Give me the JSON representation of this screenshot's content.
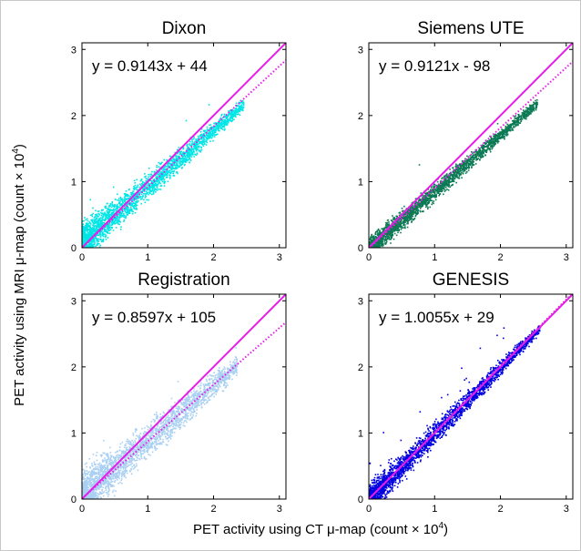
{
  "figure": {
    "ylabel": "PET activity using MRI μ-map (count × 10",
    "ylabel_sup": "4",
    "ylabel_end": ")",
    "xlabel": "PET activity using CT μ-map (count × 10",
    "xlabel_sup": "4",
    "xlabel_end": ")"
  },
  "colors": {
    "identity_line": "#e81ce8",
    "fit_line": "#e81ce8",
    "axis": "#000000"
  },
  "chart_data": [
    {
      "type": "scatter",
      "title": "Dixon",
      "equation": "y = 0.9143x + 44",
      "xlim": [
        0,
        3.1
      ],
      "ylim": [
        0,
        3.1
      ],
      "xticks": [
        "0",
        "1",
        "2",
        "3"
      ],
      "yticks": [
        "0",
        "1",
        "2",
        "3"
      ],
      "point_color": "#00e5e5",
      "fit": {
        "slope": 0.9143,
        "intercept": 0.0044
      },
      "cloud": {
        "x_min": 0.0,
        "x_max": 2.45,
        "y_ratio": 0.89,
        "offset": 0.09,
        "spread_lo": 0.22,
        "spread_hi": 0.07,
        "outliers": 0.1
      }
    },
    {
      "type": "scatter",
      "title": "Siemens UTE",
      "equation": "y = 0.9121x - 98",
      "xlim": [
        0,
        3.1
      ],
      "ylim": [
        0,
        3.1
      ],
      "xticks": [
        "0",
        "1",
        "2",
        "3"
      ],
      "yticks": [
        "0",
        "1",
        "2",
        "3"
      ],
      "point_color": "#0c7a55",
      "fit": {
        "slope": 0.9121,
        "intercept": -0.0098
      },
      "cloud": {
        "x_min": 0.0,
        "x_max": 2.55,
        "y_ratio": 0.86,
        "offset": 0.0,
        "spread_lo": 0.13,
        "spread_hi": 0.06,
        "outliers": 0.03
      }
    },
    {
      "type": "scatter",
      "title": "Registration",
      "equation": "y = 0.8597x + 105",
      "xlim": [
        0,
        3.1
      ],
      "ylim": [
        0,
        3.1
      ],
      "xticks": [
        "0",
        "1",
        "2",
        "3"
      ],
      "yticks": [
        "0",
        "1",
        "2",
        "3"
      ],
      "point_color": "#a9d0f2",
      "fit": {
        "slope": 0.8597,
        "intercept": 0.0105
      },
      "cloud": {
        "x_min": 0.0,
        "x_max": 2.35,
        "y_ratio": 0.86,
        "offset": 0.08,
        "spread_lo": 0.28,
        "spread_hi": 0.12,
        "outliers": 0.12
      }
    },
    {
      "type": "scatter",
      "title": "GENESIS",
      "equation": "y = 1.0055x + 29",
      "xlim": [
        0,
        3.1
      ],
      "ylim": [
        0,
        3.1
      ],
      "xticks": [
        "0",
        "1",
        "2",
        "3"
      ],
      "yticks": [
        "0",
        "1",
        "2",
        "3"
      ],
      "point_color": "#0000e0",
      "fit": {
        "slope": 1.0055,
        "intercept": 0.0029
      },
      "cloud": {
        "x_min": 0.0,
        "x_max": 2.6,
        "y_ratio": 1.0,
        "offset": 0.0,
        "spread_lo": 0.18,
        "spread_hi": 0.06,
        "outliers": 0.2
      }
    }
  ]
}
